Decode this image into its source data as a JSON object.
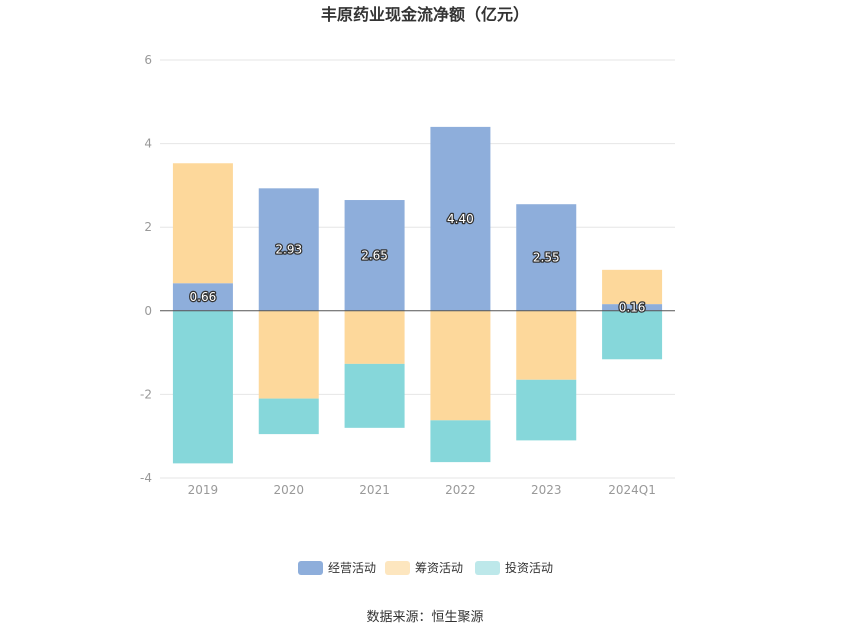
{
  "chart_data": {
    "type": "bar",
    "stacked": true,
    "title": "丰原药业现金流净额（亿元）",
    "categories": [
      "2019",
      "2020",
      "2021",
      "2022",
      "2023",
      "2024Q1"
    ],
    "series": [
      {
        "name": "经营活动",
        "color": "#8eaedb",
        "values": [
          0.66,
          2.93,
          2.65,
          4.4,
          2.55,
          0.16
        ],
        "labels": [
          "0.66",
          "2.93",
          "2.65",
          "4.40",
          "2.55",
          "0.16"
        ]
      },
      {
        "name": "筹资活动",
        "color": "#fdd89b",
        "values": [
          2.87,
          -2.1,
          -1.27,
          -2.62,
          -1.65,
          0.82
        ]
      },
      {
        "name": "投资活动",
        "color": "#86d7da",
        "values": [
          -3.65,
          -0.85,
          -1.53,
          -1.0,
          -1.45,
          -1.16
        ]
      }
    ],
    "ylim": [
      -4,
      6
    ],
    "yticks": [
      6,
      4,
      2,
      0,
      -2,
      -4
    ],
    "grid": true,
    "legend_position": "bottom",
    "legend_colors": [
      "#8eaedb",
      "#fde6bf",
      "#bde8ea"
    ]
  },
  "footer": {
    "source": "数据来源：恒生聚源"
  }
}
